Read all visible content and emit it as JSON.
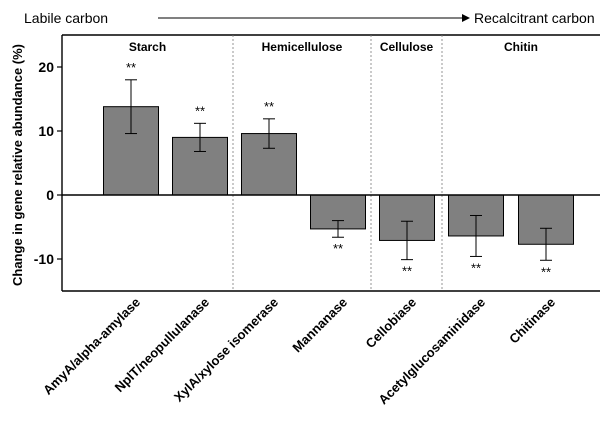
{
  "chart_data": {
    "type": "bar",
    "ylabel": "Change in gene relative abundance (%)",
    "xlabel": "",
    "ylim": [
      -15,
      25
    ],
    "yticks": [
      -10,
      0,
      10,
      20
    ],
    "grid": false,
    "gradient": {
      "left_label": "Labile carbon",
      "right_label": "Recalcitrant  carbon"
    },
    "groups": [
      {
        "name": "Starch",
        "categories": [
          "AmyA/alpha-amylase",
          "NplT/neopullulanase"
        ]
      },
      {
        "name": "Hemicellulose",
        "categories": [
          "XylA/xylose isomerase",
          "Mannanase"
        ]
      },
      {
        "name": "Cellulose",
        "categories": [
          "Cellobiase"
        ]
      },
      {
        "name": "Chitin",
        "categories": [
          "Acetylglucosaminidase",
          "Chitinase"
        ]
      }
    ],
    "categories": [
      "AmyA/alpha-amylase",
      "NplT/neopullulanase",
      "XylA/xylose isomerase",
      "Mannanase",
      "Cellobiase",
      "Acetylglucosaminidase",
      "Chitinase"
    ],
    "values": [
      13.8,
      9.0,
      9.6,
      -5.3,
      -7.1,
      -6.4,
      -7.7
    ],
    "errors": [
      4.2,
      2.2,
      2.3,
      1.3,
      3.0,
      3.2,
      2.5
    ],
    "significance": [
      "**",
      "**",
      "**",
      "**",
      "**",
      "**",
      "**"
    ],
    "colors": {
      "bar": "#808080",
      "divider": "#7a7a7a"
    }
  }
}
